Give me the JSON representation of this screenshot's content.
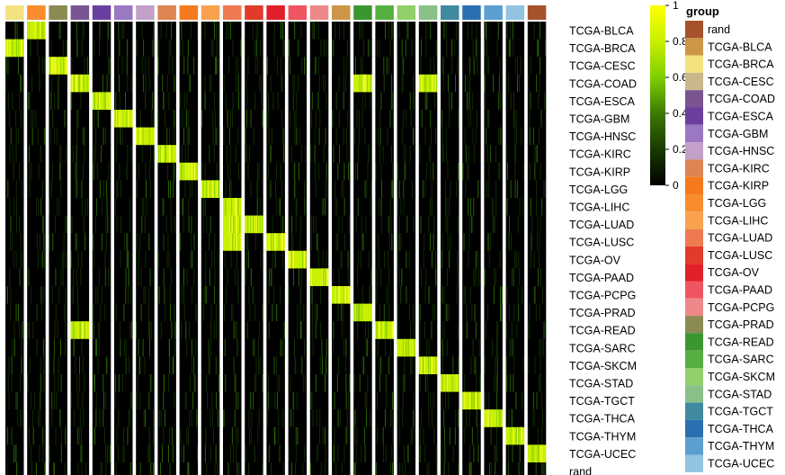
{
  "chart_data": {
    "type": "heatmap",
    "columns": [
      "TCGA-BRCA",
      "TCGA-LGG",
      "TCGA-PRAD",
      "TCGA-COAD",
      "TCGA-ESCA",
      "TCGA-GBM",
      "TCGA-HNSC",
      "TCGA-KIRC",
      "TCGA-KIRP",
      "TCGA-LIHC",
      "TCGA-LUAD",
      "TCGA-LUSC",
      "TCGA-OV",
      "TCGA-PAAD",
      "TCGA-PCPG",
      "TCGA-BLCA",
      "TCGA-READ",
      "TCGA-SARC",
      "TCGA-SKCM",
      "TCGA-STAD",
      "TCGA-TGCT",
      "TCGA-THCA",
      "TCGA-THYM",
      "TCGA-UCEC",
      "rand"
    ],
    "rows": [
      "TCGA-BLCA",
      "TCGA-BRCA",
      "TCGA-CESC",
      "TCGA-COAD",
      "TCGA-ESCA",
      "TCGA-GBM",
      "TCGA-HNSC",
      "TCGA-KIRC",
      "TCGA-KIRP",
      "TCGA-LGG",
      "TCGA-LIHC",
      "TCGA-LUAD",
      "TCGA-LUSC",
      "TCGA-OV",
      "TCGA-PAAD",
      "TCGA-PCPG",
      "TCGA-PRAD",
      "TCGA-READ",
      "TCGA-SARC",
      "TCGA-SKCM",
      "TCGA-STAD",
      "TCGA-TGCT",
      "TCGA-THCA",
      "TCGA-THYM",
      "TCGA-UCEC",
      "rand"
    ],
    "high_cells": [
      [
        1,
        0
      ],
      [
        0,
        1
      ],
      [
        2,
        2
      ],
      [
        3,
        3
      ],
      [
        4,
        4
      ],
      [
        5,
        5
      ],
      [
        6,
        6
      ],
      [
        7,
        7
      ],
      [
        8,
        8
      ],
      [
        9,
        9
      ],
      [
        10,
        10
      ],
      [
        11,
        11
      ],
      [
        12,
        12
      ],
      [
        13,
        13
      ],
      [
        14,
        14
      ],
      [
        15,
        15
      ],
      [
        16,
        16
      ],
      [
        17,
        17
      ],
      [
        18,
        18
      ],
      [
        19,
        19
      ],
      [
        20,
        20
      ],
      [
        21,
        21
      ],
      [
        22,
        22
      ],
      [
        23,
        23
      ],
      [
        24,
        24
      ],
      [
        3,
        16
      ],
      [
        17,
        3
      ],
      [
        3,
        19
      ],
      [
        11,
        10
      ],
      [
        12,
        10
      ]
    ],
    "value_range": [
      0,
      1
    ],
    "colorbar_ticks": [
      "1",
      "0.8",
      "0.6",
      "0.4",
      "0.2",
      "0"
    ],
    "colormap": [
      "#000000",
      "#1a3a00",
      "#3d7a00",
      "#7fcf00",
      "#c8f000",
      "#ffff00"
    ],
    "legend_title": "group",
    "legend_entries": [
      {
        "label": "rand",
        "color": "#a6522c"
      },
      {
        "label": "TCGA-BLCA",
        "color": "#cc9548"
      },
      {
        "label": "TCGA-BRCA",
        "color": "#f3e27f"
      },
      {
        "label": "TCGA-CESC",
        "color": "#c9b98a"
      },
      {
        "label": "TCGA-COAD",
        "color": "#7b5592"
      },
      {
        "label": "TCGA-ESCA",
        "color": "#6b3fa0"
      },
      {
        "label": "TCGA-GBM",
        "color": "#9a78c2"
      },
      {
        "label": "TCGA-HNSC",
        "color": "#c3a0c8"
      },
      {
        "label": "TCGA-KIRC",
        "color": "#dc8550"
      },
      {
        "label": "TCGA-KIRP",
        "color": "#f57a1e"
      },
      {
        "label": "TCGA-LGG",
        "color": "#f98c2e"
      },
      {
        "label": "TCGA-LIHC",
        "color": "#f9a24e"
      },
      {
        "label": "TCGA-LUAD",
        "color": "#ee7a50"
      },
      {
        "label": "TCGA-LUSC",
        "color": "#e23b2c"
      },
      {
        "label": "TCGA-OV",
        "color": "#e0202a"
      },
      {
        "label": "TCGA-PAAD",
        "color": "#ef5560"
      },
      {
        "label": "TCGA-PCPG",
        "color": "#ee8888"
      },
      {
        "label": "TCGA-PRAD",
        "color": "#8a8a52"
      },
      {
        "label": "TCGA-READ",
        "color": "#3a962e"
      },
      {
        "label": "TCGA-SARC",
        "color": "#55b040"
      },
      {
        "label": "TCGA-SKCM",
        "color": "#90d068"
      },
      {
        "label": "TCGA-STAD",
        "color": "#88c088"
      },
      {
        "label": "TCGA-TGCT",
        "color": "#3f8aa0"
      },
      {
        "label": "TCGA-THCA",
        "color": "#2a70b0"
      },
      {
        "label": "TCGA-THYM",
        "color": "#5a9fd0"
      },
      {
        "label": "TCGA-UCEC",
        "color": "#92c3e0"
      }
    ]
  }
}
